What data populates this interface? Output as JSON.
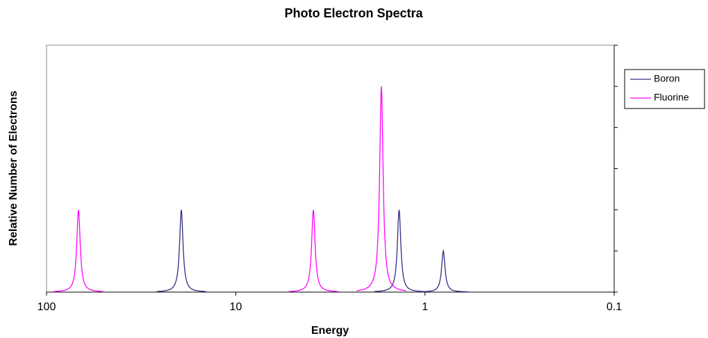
{
  "chart_data": {
    "type": "peaks",
    "title": "Photo Electron Spectra",
    "x_label": "Energy",
    "y_label": "Relative Number of Electrons",
    "xscale": "log",
    "xlim": [
      100,
      0.1
    ],
    "xticks": [
      100,
      10,
      1,
      0.1
    ],
    "ylim": [
      0,
      6
    ],
    "yticks": [
      0,
      1,
      2,
      3,
      4,
      5,
      6
    ],
    "y_axis_side": "right",
    "legend": "right",
    "series": [
      {
        "name": "Boron",
        "color": "#2e2e80",
        "x": [
          19.4,
          1.37,
          0.8
        ],
        "values": [
          2,
          2,
          1
        ]
      },
      {
        "name": "Fluorine",
        "color": "#ff00ff",
        "x": [
          67.8,
          3.89,
          1.7
        ],
        "values": [
          2,
          2,
          5
        ]
      }
    ]
  }
}
